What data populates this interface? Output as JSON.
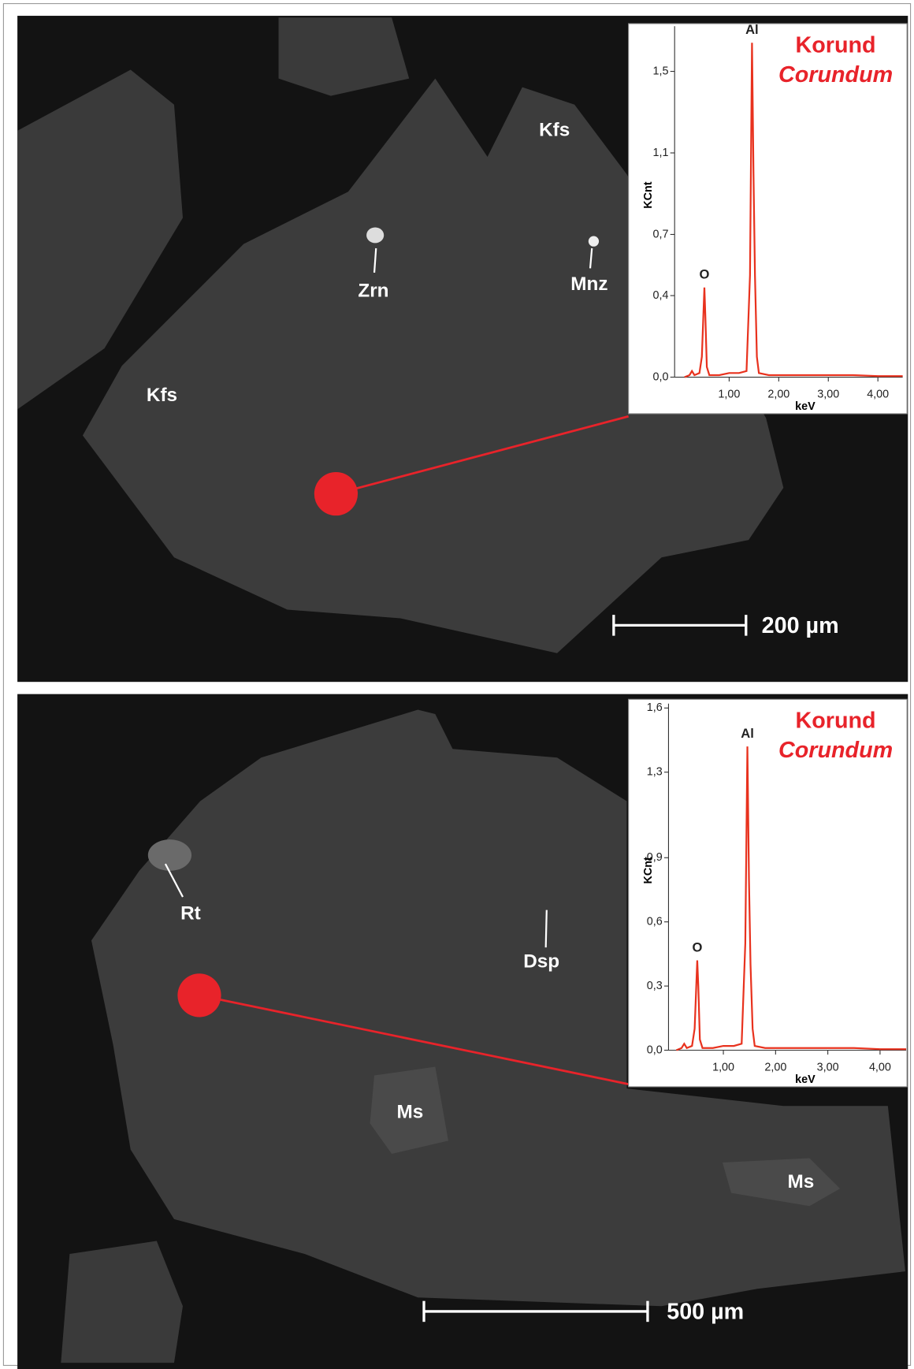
{
  "chart_data": [
    {
      "type": "line",
      "title": "Korund",
      "subtitle": "Corundum",
      "x_label": "keV",
      "y_label": "KCnt",
      "annotations": [
        "O",
        "Al"
      ],
      "color": "#e8321e",
      "x": [
        0.1,
        0.2,
        0.25,
        0.3,
        0.4,
        0.45,
        0.5,
        0.52,
        0.55,
        0.6,
        0.8,
        1.0,
        1.2,
        1.35,
        1.42,
        1.46,
        1.49,
        1.52,
        1.56,
        1.6,
        1.8,
        2.0,
        2.5,
        3.0,
        3.5,
        4.0,
        4.5
      ],
      "values": [
        0,
        0.01,
        0.03,
        0.01,
        0.02,
        0.1,
        0.44,
        0.3,
        0.05,
        0.01,
        0.01,
        0.02,
        0.02,
        0.03,
        0.5,
        1.64,
        1.0,
        0.5,
        0.1,
        0.02,
        0.01,
        0.01,
        0.01,
        0.01,
        0.01,
        0.005,
        0.005
      ],
      "xlim": [
        -0.1,
        4.5
      ],
      "xticks": [
        {
          "value": 1,
          "label": "1,00"
        },
        {
          "value": 2,
          "label": "2,00"
        },
        {
          "value": 3,
          "label": "3,00"
        },
        {
          "value": 4,
          "label": "4,00"
        }
      ],
      "ylim": [
        0,
        1.7
      ],
      "yticks": [
        {
          "value": 0,
          "label": "0,0"
        },
        {
          "value": 0.4,
          "label": "0,4"
        },
        {
          "value": 0.7,
          "label": "0,7"
        },
        {
          "value": 1.1,
          "label": "1,1"
        },
        {
          "value": 1.5,
          "label": "1,5"
        }
      ]
    },
    {
      "type": "line",
      "title": "Korund",
      "subtitle": "Corundum",
      "x_label": "keV",
      "y_label": "KCnt",
      "annotations": [
        "O",
        "Al"
      ],
      "color": "#e8321e",
      "x": [
        0.1,
        0.2,
        0.25,
        0.3,
        0.4,
        0.45,
        0.5,
        0.52,
        0.55,
        0.6,
        0.8,
        1.0,
        1.2,
        1.35,
        1.42,
        1.46,
        1.49,
        1.52,
        1.56,
        1.6,
        1.8,
        2.0,
        2.5,
        3.0,
        3.5,
        4.0,
        4.5
      ],
      "values": [
        0,
        0.01,
        0.03,
        0.01,
        0.02,
        0.1,
        0.42,
        0.3,
        0.05,
        0.01,
        0.01,
        0.02,
        0.02,
        0.03,
        0.5,
        1.42,
        0.8,
        0.4,
        0.1,
        0.02,
        0.01,
        0.01,
        0.01,
        0.01,
        0.01,
        0.005,
        0.005
      ],
      "xlim": [
        -0.05,
        4.5
      ],
      "xticks": [
        {
          "value": 1,
          "label": "1,00"
        },
        {
          "value": 2,
          "label": "2,00"
        },
        {
          "value": 3,
          "label": "3,00"
        },
        {
          "value": 4,
          "label": "4,00"
        }
      ],
      "ylim": [
        0,
        1.6
      ],
      "yticks": [
        {
          "value": 0,
          "label": "0,0"
        },
        {
          "value": 0.3,
          "label": "0,3"
        },
        {
          "value": 0.6,
          "label": "0,6"
        },
        {
          "value": 0.9,
          "label": "0,9"
        },
        {
          "value": 1.3,
          "label": "1,3"
        },
        {
          "value": 1.6,
          "label": "1,6"
        }
      ]
    }
  ],
  "panels": [
    {
      "labels": [
        "Kfs",
        "Zrn",
        "Mnz",
        "Kfs"
      ],
      "scale_bar": "200 µm"
    },
    {
      "labels": [
        "Rt",
        "Dsp",
        "Ms",
        "Ms"
      ],
      "scale_bar": "500 µm"
    }
  ]
}
